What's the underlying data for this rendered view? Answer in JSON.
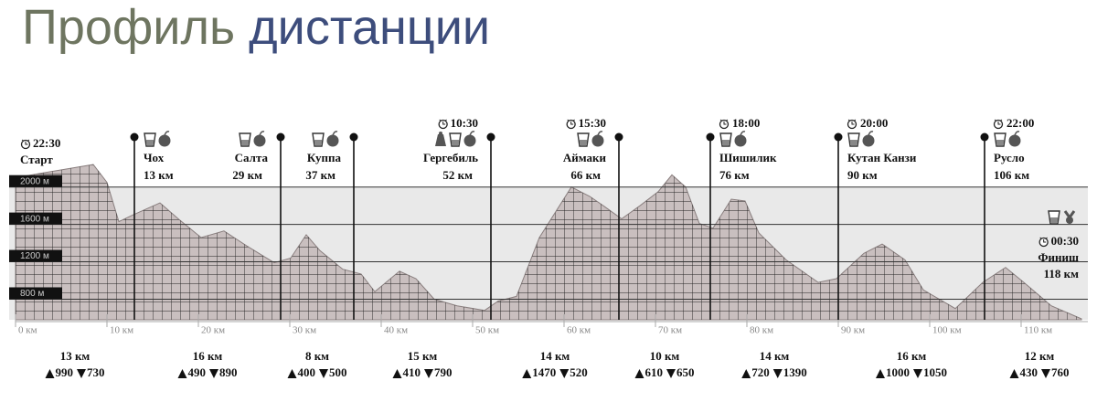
{
  "chart_data": {
    "type": "area",
    "title": [
      "Профиль",
      "дистанции"
    ],
    "x": [
      0,
      3,
      6,
      8.5,
      10,
      11.3,
      12.8,
      15.8,
      17.8,
      20.3,
      22.8,
      25.3,
      28.3,
      30.1,
      31.8,
      33.3,
      35.8,
      37.8,
      39.3,
      42,
      43.8,
      45.8,
      48.3,
      51.3,
      52.8,
      54.8,
      57.3,
      60.8,
      62.8,
      64.3,
      66.3,
      68.3,
      70.3,
      71.8,
      73.3,
      74.8,
      76.3,
      78.3,
      79.8,
      81.3,
      84.3,
      87.8,
      89.8,
      92.8,
      94.8,
      97.3,
      99.3,
      102.8,
      105.8,
      108.3,
      110.3,
      113.3,
      116.6
    ],
    "values": [
      2100,
      2150,
      2200,
      2240,
      2050,
      1630,
      1700,
      1830,
      1660,
      1460,
      1530,
      1370,
      1190,
      1240,
      1490,
      1320,
      1120,
      1070,
      880,
      1100,
      1020,
      800,
      730,
      680,
      780,
      830,
      1460,
      2000,
      1900,
      1800,
      1660,
      1800,
      1950,
      2130,
      2000,
      1610,
      1560,
      1870,
      1850,
      1510,
      1220,
      980,
      1020,
      1290,
      1390,
      1220,
      900,
      700,
      980,
      1140,
      980,
      730,
      590
    ],
    "color": "#c9bfbf",
    "xlim": [
      0,
      118
    ],
    "ylim": [
      580,
      2300
    ],
    "xticks": [
      {
        "value": 0,
        "label": "0 км"
      },
      {
        "value": 10,
        "label": "10 км"
      },
      {
        "value": 20,
        "label": "20 км"
      },
      {
        "value": 30,
        "label": "30 км"
      },
      {
        "value": 40,
        "label": "40 км"
      },
      {
        "value": 50,
        "label": "50 км"
      },
      {
        "value": 60,
        "label": "60 км"
      },
      {
        "value": 70,
        "label": "70 км"
      },
      {
        "value": 80,
        "label": "80 км"
      },
      {
        "value": 90,
        "label": "90 км"
      },
      {
        "value": 100,
        "label": "100 км"
      },
      {
        "value": 110,
        "label": "110 км"
      }
    ],
    "yticks": [
      {
        "value": 800,
        "label": "800 м"
      },
      {
        "value": 1200,
        "label": "1200 м"
      },
      {
        "value": 1600,
        "label": "1600 м"
      },
      {
        "value": 2000,
        "label": "2000 м"
      }
    ],
    "grid": true,
    "checkpoints": [
      {
        "name": "Старт",
        "km": 0,
        "time": "22:30"
      },
      {
        "name": "Чох",
        "km": 13,
        "distance": "13 км",
        "icons": [
          "cup",
          "apple"
        ]
      },
      {
        "name": "Салта",
        "km": 29,
        "distance": "29 км",
        "icons": [
          "cup",
          "apple"
        ]
      },
      {
        "name": "Куппа",
        "km": 37,
        "distance": "37 км",
        "icons": [
          "cup",
          "apple"
        ]
      },
      {
        "name": "Гергебиль",
        "km": 52,
        "distance": "52 км",
        "time": "10:30",
        "icons": [
          "bag",
          "cup",
          "apple"
        ]
      },
      {
        "name": "Аймаки",
        "km": 66,
        "distance": "66 км",
        "time": "15:30",
        "icons": [
          "cup",
          "apple"
        ]
      },
      {
        "name": "Шишилик",
        "km": 76,
        "distance": "76 км",
        "time": "18:00",
        "icons": [
          "cup",
          "apple"
        ]
      },
      {
        "name": "Кутан Канзи",
        "km": 90,
        "distance": "90 км",
        "time": "20:00",
        "icons": [
          "cup",
          "apple"
        ]
      },
      {
        "name": "Русло",
        "km": 106,
        "distance": "106 км",
        "time": "22:00",
        "icons": [
          "cup",
          "apple"
        ]
      },
      {
        "name": "Финиш",
        "km": 118,
        "distance": "118 км",
        "time": "00:30",
        "icons": [
          "cup",
          "medal"
        ]
      }
    ],
    "segments": [
      {
        "distance": "13 км",
        "up": 990,
        "down": 730
      },
      {
        "distance": "16 км",
        "up": 490,
        "down": 890
      },
      {
        "distance": "8 км",
        "up": 400,
        "down": 500
      },
      {
        "distance": "15 км",
        "up": 410,
        "down": 790
      },
      {
        "distance": "14 км",
        "up": 1470,
        "down": 520
      },
      {
        "distance": "10 км",
        "up": 610,
        "down": 650
      },
      {
        "distance": "14 км",
        "up": 720,
        "down": 1390
      },
      {
        "distance": "16 км",
        "up": 1000,
        "down": 1050
      },
      {
        "distance": "12 км",
        "up": 430,
        "down": 760
      }
    ]
  }
}
